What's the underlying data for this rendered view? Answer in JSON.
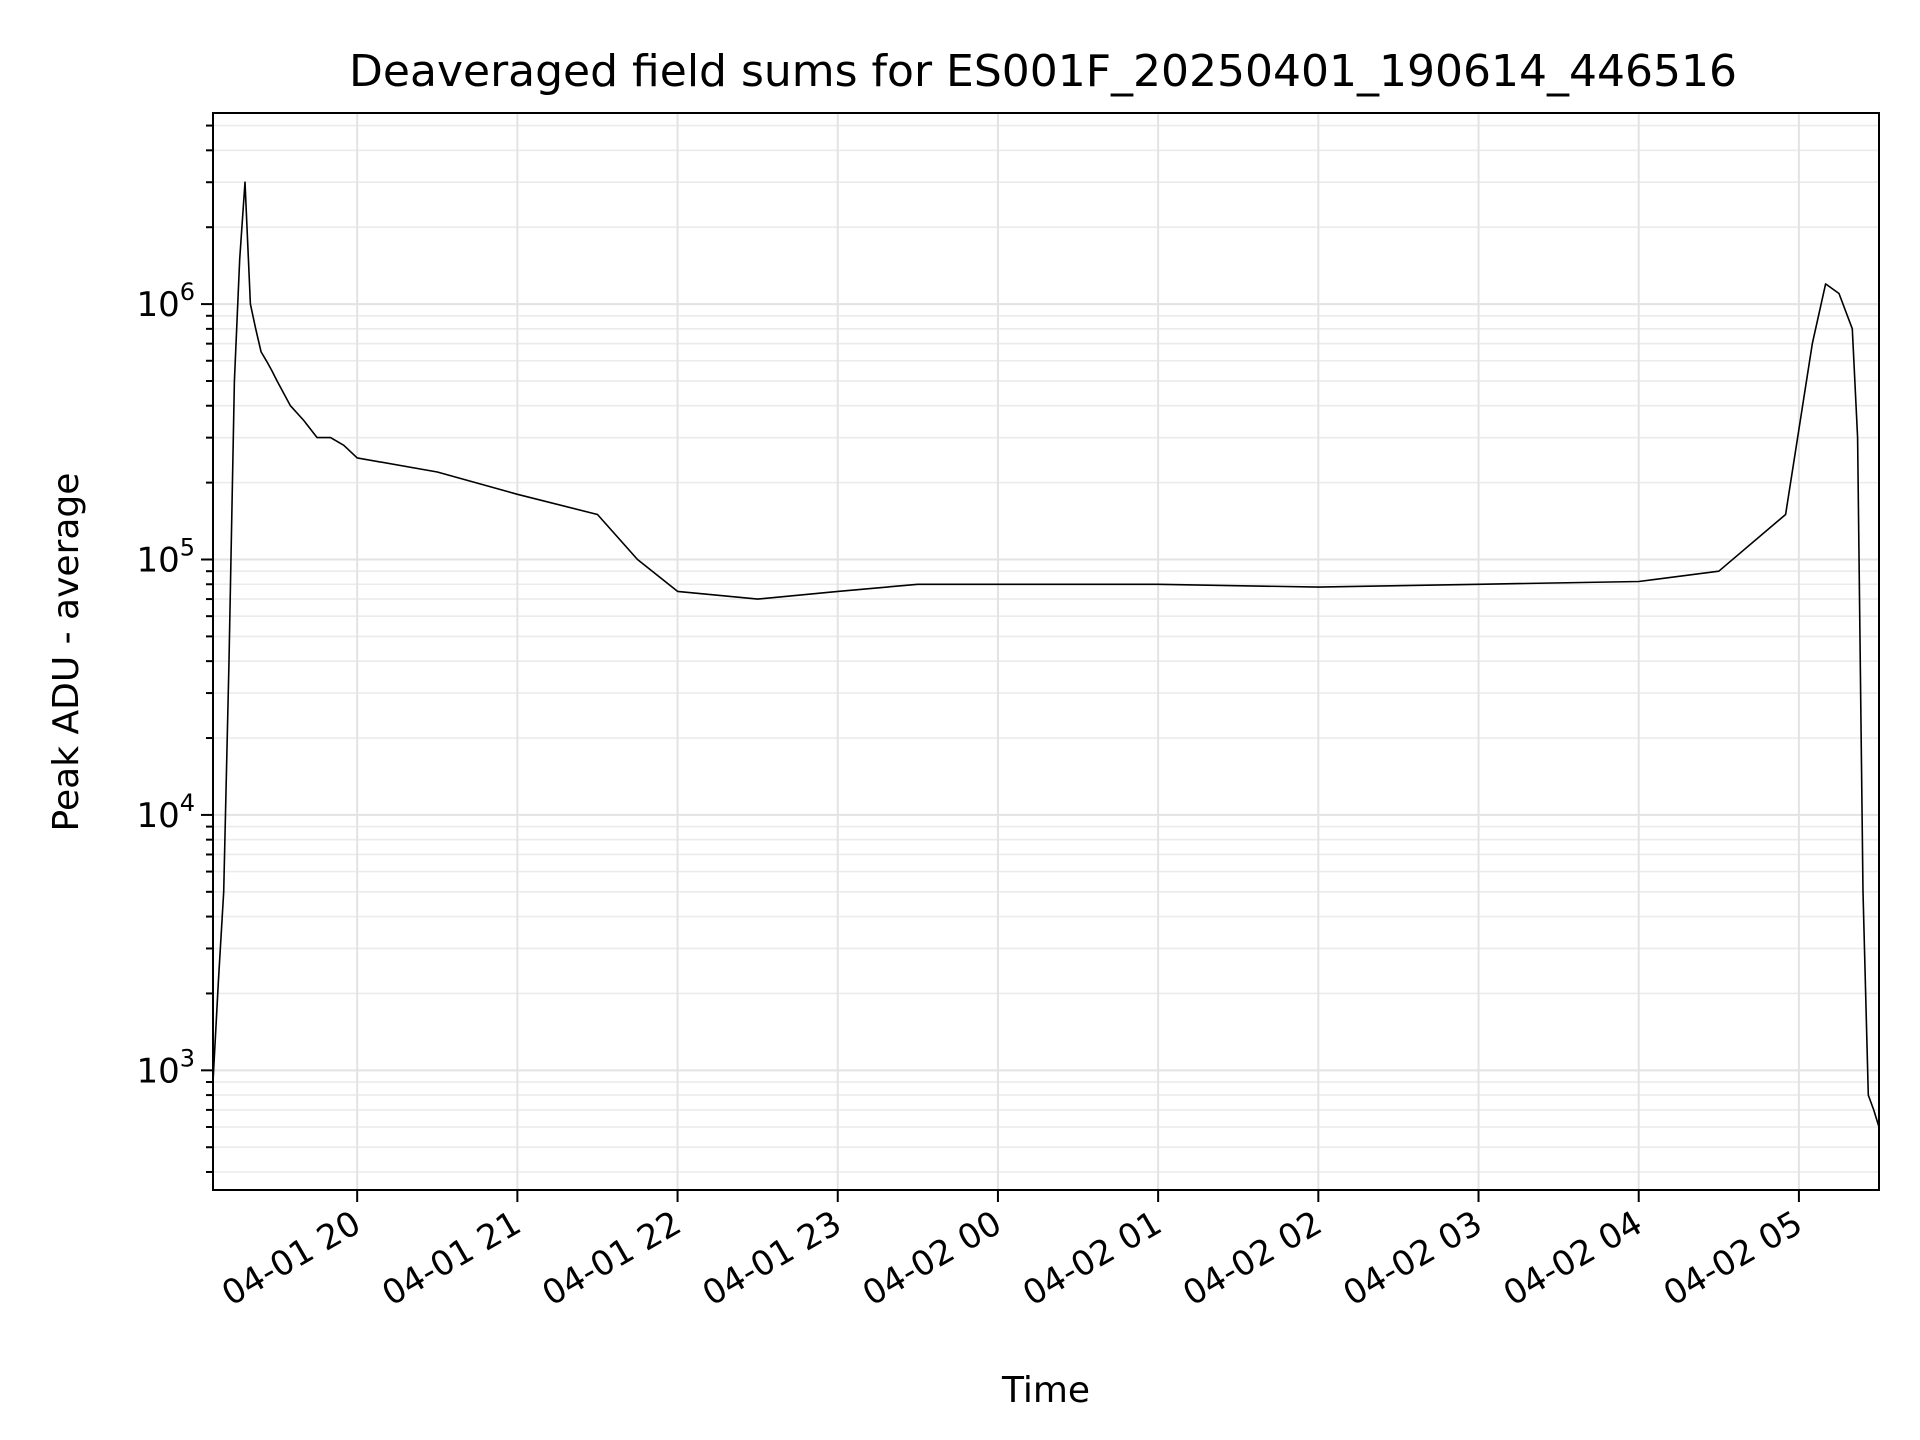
{
  "chart_data": {
    "type": "line",
    "title": "Deaveraged field sums for ES001F_20250401_190614_446516",
    "xlabel": "Time",
    "ylabel": "Peak ADU - average",
    "yscale": "log",
    "ylim": [
      340,
      5600000
    ],
    "xlim": [
      "2025-04-01 19:06",
      "2025-04-02 05:30"
    ],
    "grid": true,
    "legend": "none",
    "line_color": "#000000",
    "x_ticks": [
      {
        "value": "2025-04-01 20:00",
        "label": "04-01 20"
      },
      {
        "value": "2025-04-01 21:00",
        "label": "04-01 21"
      },
      {
        "value": "2025-04-01 22:00",
        "label": "04-01 22"
      },
      {
        "value": "2025-04-01 23:00",
        "label": "04-01 23"
      },
      {
        "value": "2025-04-02 00:00",
        "label": "04-02 00"
      },
      {
        "value": "2025-04-02 01:00",
        "label": "04-02 01"
      },
      {
        "value": "2025-04-02 02:00",
        "label": "04-02 02"
      },
      {
        "value": "2025-04-02 03:00",
        "label": "04-02 03"
      },
      {
        "value": "2025-04-02 04:00",
        "label": "04-02 04"
      },
      {
        "value": "2025-04-02 05:00",
        "label": "04-02 05"
      }
    ],
    "y_ticks": [
      {
        "value": 1000,
        "base": "10",
        "exp": "3"
      },
      {
        "value": 10000,
        "base": "10",
        "exp": "4"
      },
      {
        "value": 100000,
        "base": "10",
        "exp": "5"
      },
      {
        "value": 1000000,
        "base": "10",
        "exp": "6"
      }
    ],
    "series": [
      {
        "x": [
          "2025-04-01 19:06",
          "2025-04-01 19:08",
          "2025-04-01 19:10",
          "2025-04-01 19:12",
          "2025-04-01 19:14",
          "2025-04-01 19:16",
          "2025-04-01 19:18",
          "2025-04-01 19:20",
          "2025-04-01 19:22",
          "2025-04-01 19:24",
          "2025-04-01 19:26",
          "2025-04-01 19:28",
          "2025-04-01 19:30",
          "2025-04-01 19:35",
          "2025-04-01 19:40",
          "2025-04-01 19:45",
          "2025-04-01 19:50",
          "2025-04-01 19:55",
          "2025-04-01 20:00",
          "2025-04-01 20:30",
          "2025-04-01 21:00",
          "2025-04-01 21:30",
          "2025-04-01 21:45",
          "2025-04-01 22:00",
          "2025-04-01 22:30",
          "2025-04-01 23:00",
          "2025-04-01 23:30",
          "2025-04-02 00:00",
          "2025-04-02 01:00",
          "2025-04-02 02:00",
          "2025-04-02 03:00",
          "2025-04-02 04:00",
          "2025-04-02 04:30",
          "2025-04-02 04:55",
          "2025-04-02 05:05",
          "2025-04-02 05:10",
          "2025-04-02 05:15",
          "2025-04-02 05:20",
          "2025-04-02 05:22",
          "2025-04-02 05:24",
          "2025-04-02 05:26",
          "2025-04-02 05:28",
          "2025-04-02 05:30"
        ],
        "values": [
          900,
          2200,
          5000,
          40000,
          500000,
          1500000,
          3000000,
          1000000,
          800000,
          650000,
          600000,
          550000,
          500000,
          400000,
          350000,
          300000,
          300000,
          280000,
          250000,
          220000,
          180000,
          150000,
          100000,
          75000,
          70000,
          75000,
          80000,
          80000,
          80000,
          78000,
          80000,
          82000,
          90000,
          150000,
          700000,
          1200000,
          1100000,
          800000,
          300000,
          5000,
          800,
          700,
          600
        ]
      }
    ]
  }
}
